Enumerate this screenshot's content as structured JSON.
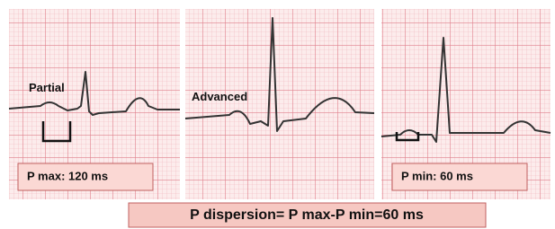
{
  "panels": [
    {
      "label": "Partial",
      "measure": "P max: 120 ms"
    },
    {
      "label": "Advanced"
    },
    {
      "measure": "P min: 60 ms"
    }
  ],
  "footer": "P dispersion= P max-P min=60 ms"
}
